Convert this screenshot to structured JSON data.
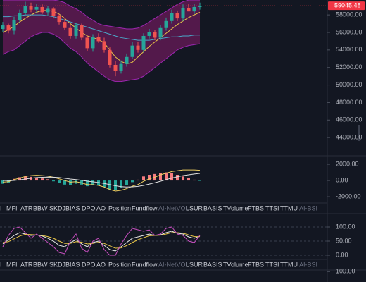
{
  "chart_data": [
    {
      "type": "candlestick",
      "open": [
        56400,
        56800,
        56200,
        57400,
        58200,
        59000,
        58600,
        58900,
        58300,
        58700,
        57900,
        57200,
        56500,
        55600,
        56800,
        55400,
        54200,
        55500,
        55000,
        54000,
        52300,
        51600,
        52400,
        53200,
        54500,
        54000,
        55600,
        56000,
        55400,
        56500,
        57300,
        58200,
        57600,
        58800,
        58400,
        58900
      ],
      "high": [
        57200,
        57000,
        57800,
        58600,
        59500,
        59400,
        59300,
        59200,
        59000,
        58900,
        58100,
        57500,
        56800,
        57100,
        57000,
        55700,
        55800,
        55900,
        55400,
        54300,
        52700,
        52800,
        53600,
        54900,
        54900,
        55900,
        56400,
        56300,
        56800,
        57700,
        58600,
        58500,
        59200,
        59300,
        59300,
        59400
      ],
      "low": [
        56000,
        55900,
        55800,
        57100,
        57900,
        58300,
        58200,
        58100,
        57900,
        57600,
        56900,
        56300,
        55300,
        55300,
        55100,
        53900,
        53800,
        54800,
        53700,
        52000,
        51000,
        51300,
        52100,
        53000,
        53700,
        53700,
        55300,
        55100,
        55100,
        56200,
        57000,
        57300,
        57300,
        58400,
        58100,
        58600
      ],
      "close": [
        56800,
        56200,
        57400,
        58200,
        59000,
        58600,
        58900,
        58300,
        58700,
        57900,
        57200,
        56500,
        55600,
        56800,
        55400,
        54200,
        55500,
        55000,
        54000,
        52300,
        51600,
        52400,
        53200,
        54500,
        54000,
        55600,
        56000,
        55400,
        56500,
        57300,
        58200,
        57600,
        58800,
        58400,
        58900,
        59045.48
      ],
      "up_color": "#26a69a",
      "down_color": "#ef5350",
      "bands": {
        "color": "#9c27b0",
        "fill": "#6a1b5a",
        "upper": [
          59700,
          59700,
          59700,
          59700,
          59700,
          59700,
          59700,
          59700,
          59700,
          59700,
          59600,
          59400,
          59000,
          58700,
          58300,
          57800,
          57400,
          57000,
          56800,
          56700,
          56600,
          56500,
          56400,
          56400,
          56500,
          56800,
          57200,
          57600,
          58000,
          58400,
          58800,
          59200,
          59500,
          59700,
          59700,
          59700
        ],
        "lower": [
          53500,
          53800,
          54000,
          54500,
          55000,
          55500,
          55800,
          56000,
          56000,
          55800,
          55400,
          54800,
          54200,
          53800,
          53200,
          52500,
          52000,
          51500,
          51000,
          50600,
          50400,
          50400,
          50500,
          50600,
          50700,
          51000,
          51500,
          52000,
          52500,
          53000,
          53500,
          54000,
          54300,
          54500,
          54600,
          54700
        ]
      },
      "series": [
        {
          "color": "#e8c547",
          "values": [
            56000,
            56300,
            56700,
            57200,
            57600,
            58000,
            58300,
            58500,
            58500,
            58400,
            58100,
            57600,
            57000,
            56500,
            56000,
            55600,
            55400,
            55200,
            54800,
            54000,
            53200,
            52700,
            52400,
            52600,
            53200,
            53800,
            54400,
            54900,
            55400,
            55900,
            56400,
            56900,
            57300,
            57700,
            58000,
            58300
          ]
        },
        {
          "color": "#4aa8c8",
          "values": [
            57800,
            57800,
            57900,
            57900,
            58000,
            58000,
            58000,
            58000,
            57900,
            57800,
            57600,
            57400,
            57200,
            57000,
            56800,
            56600,
            56400,
            56200,
            56000,
            55800,
            55600,
            55400,
            55300,
            55200,
            55100,
            55100,
            55100,
            55200,
            55300,
            55400,
            55500,
            55500,
            55600,
            55600,
            55700,
            55700
          ]
        }
      ],
      "ylim": [
        42000,
        59700
      ],
      "yticks": [
        {
          "value": 58000,
          "label": "58000.00"
        },
        {
          "value": 56000,
          "label": "56000.00"
        },
        {
          "value": 54000,
          "label": "54000.00"
        },
        {
          "value": 52000,
          "label": "52000.00"
        },
        {
          "value": 50000,
          "label": "50000.00"
        },
        {
          "value": 48000,
          "label": "48000.00"
        },
        {
          "value": 46000,
          "label": "46000.00"
        },
        {
          "value": 44000,
          "label": "44000.00"
        }
      ],
      "last_color": "#f23645"
    },
    {
      "type": "macd",
      "histogram": [
        -400,
        -300,
        200,
        400,
        500,
        450,
        350,
        250,
        150,
        -100,
        -300,
        -500,
        -600,
        -400,
        -500,
        -700,
        -500,
        -600,
        -800,
        -1100,
        -1200,
        -900,
        -600,
        -200,
        100,
        500,
        700,
        800,
        900,
        1000,
        900,
        700,
        500,
        300,
        100,
        -50
      ],
      "up_color": "#f77c80",
      "down_color": "#26a69a",
      "series": [
        {
          "color": "#f0d060",
          "values": [
            -200,
            -150,
            100,
            300,
            500,
            600,
            650,
            600,
            550,
            400,
            200,
            0,
            -200,
            -150,
            -300,
            -500,
            -500,
            -600,
            -800,
            -1100,
            -1300,
            -1200,
            -1000,
            -700,
            -500,
            -100,
            200,
            400,
            700,
            900,
            1100,
            1200,
            1300,
            1300,
            1300,
            1250
          ]
        },
        {
          "color": "#e0e0e0",
          "values": [
            0,
            -20,
            0,
            80,
            180,
            280,
            360,
            400,
            420,
            410,
            360,
            280,
            180,
            110,
            30,
            -80,
            -160,
            -250,
            -360,
            -500,
            -650,
            -750,
            -800,
            -780,
            -720,
            -600,
            -440,
            -280,
            -90,
            110,
            300,
            460,
            600,
            700,
            800,
            870
          ]
        }
      ],
      "ylim": [
        -2950,
        2700
      ],
      "yticks": [
        {
          "value": 2000,
          "label": "2000.00"
        },
        {
          "value": 0,
          "label": "0.00"
        },
        {
          "value": -2000,
          "label": "-2000.00"
        }
      ]
    },
    {
      "type": "line",
      "series": [
        {
          "color": "#e8e8e8",
          "values": [
            40,
            55,
            70,
            80,
            75,
            70,
            72,
            68,
            60,
            50,
            35,
            30,
            45,
            55,
            40,
            30,
            45,
            50,
            35,
            20,
            15,
            30,
            45,
            60,
            65,
            70,
            75,
            70,
            72,
            80,
            85,
            78,
            75,
            65,
            60,
            68
          ]
        },
        {
          "color": "#e8c547",
          "values": [
            45,
            48,
            58,
            68,
            74,
            73,
            72,
            70,
            66,
            60,
            50,
            42,
            42,
            48,
            46,
            40,
            42,
            46,
            42,
            33,
            25,
            26,
            34,
            45,
            55,
            62,
            69,
            70,
            71,
            75,
            80,
            80,
            78,
            72,
            66,
            66
          ]
        },
        {
          "color": "#c84fc0",
          "values": [
            30,
            70,
            95,
            100,
            80,
            60,
            75,
            60,
            45,
            30,
            10,
            5,
            50,
            75,
            25,
            10,
            50,
            60,
            20,
            0,
            0,
            40,
            70,
            95,
            90,
            85,
            90,
            70,
            75,
            95,
            100,
            75,
            70,
            50,
            45,
            70
          ]
        }
      ],
      "ylim": [
        -25,
        147.5
      ],
      "yticks": [
        {
          "value": 100,
          "label": "100.00"
        },
        {
          "value": 50,
          "label": "50.00"
        },
        {
          "value": 0,
          "label": "0.00"
        }
      ],
      "grid": true
    },
    {
      "type": "line",
      "series": [],
      "ylim": [
        45,
        120
      ],
      "yticks": [
        {
          "value": 100,
          "label": "100.00"
        }
      ]
    }
  ],
  "indicator_tabs": [
    "I",
    "MFI",
    "ATR",
    "BBW",
    "SKDJ",
    "BIAS",
    "DPO",
    "AO",
    "Position",
    "Fundflow",
    "AI-NetVOL",
    "LSUR",
    "BASIS",
    "TVolume",
    "FTBS",
    "TTSI",
    "TTMU",
    "AI-BSI"
  ],
  "indicator_tabs_2": [
    "I",
    "MFI",
    "ATR",
    "BBW",
    "SKDJ",
    "BIAS",
    "DPO",
    "AO",
    "Position",
    "Fundflow",
    "AI-NetVOL",
    "LSUR",
    "BASIS",
    "TVolume",
    "FTBS",
    "TTSI",
    "TTMU",
    "AI-BSI"
  ]
}
